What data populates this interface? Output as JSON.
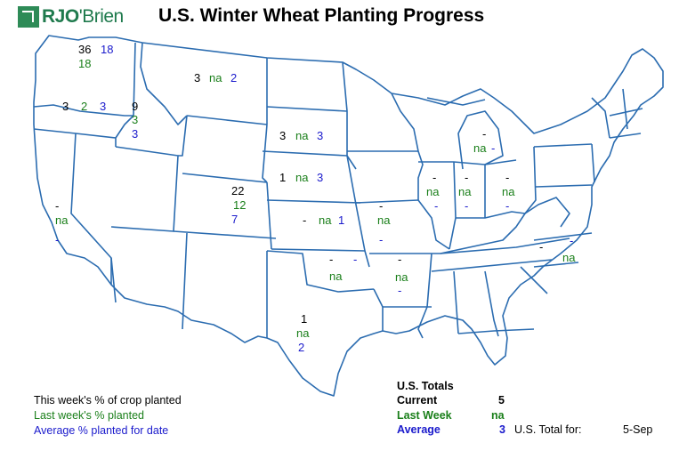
{
  "header": {
    "brand_main": "RJO",
    "brand_sub": "'Brien",
    "title": "U.S. Winter Wheat Planting Progress"
  },
  "states": {
    "wa": {
      "current": "36",
      "last_week": "18",
      "average": "18"
    },
    "or": {
      "current": "3",
      "last_week": "2",
      "average": "3"
    },
    "id": {
      "current": "9",
      "last_week": "3",
      "average": "3"
    },
    "mt": {
      "current": "3",
      "last_week": "na",
      "average": "2"
    },
    "sd": {
      "current": "3",
      "last_week": "na",
      "average": "3"
    },
    "ne": {
      "current": "1",
      "last_week": "na",
      "average": "3"
    },
    "co": {
      "current": "22",
      "last_week": "12",
      "average": "7"
    },
    "ca": {
      "current": "-",
      "last_week": "na",
      "average": "-"
    },
    "ks": {
      "current": "-",
      "last_week": "na",
      "average": "1"
    },
    "mo": {
      "current": "-",
      "last_week": "na",
      "average": "-"
    },
    "il": {
      "current": "-",
      "last_week": "na",
      "average": "-"
    },
    "in": {
      "current": "-",
      "last_week": "na",
      "average": "-"
    },
    "oh": {
      "current": "-",
      "last_week": "na",
      "average": "-"
    },
    "mi": {
      "current": "-",
      "last_week": "na",
      "average": "-"
    },
    "ok": {
      "current": "-",
      "last_week": "na",
      "average": "-"
    },
    "ar": {
      "current": "-",
      "last_week": "na",
      "average": "-"
    },
    "nc": {
      "current": "-",
      "last_week": "na",
      "average": "-"
    },
    "tx": {
      "current": "1",
      "last_week": "na",
      "average": "2"
    }
  },
  "legend": {
    "current": "This week's % of crop planted",
    "last_week": "Last week's % planted",
    "average": "Average % planted for date"
  },
  "totals": {
    "heading": "U.S. Totals",
    "current_label": "Current",
    "current_value": "5",
    "last_week_label": "Last Week",
    "last_week_value": "na",
    "average_label": "Average",
    "average_value": "3",
    "total_for_label": "U.S. Total for:",
    "date": "5-Sep"
  },
  "colors": {
    "current": "#000000",
    "last_week": "#1a7f1a",
    "average": "#1a1acc",
    "state_lines": "#2b6cb0"
  }
}
